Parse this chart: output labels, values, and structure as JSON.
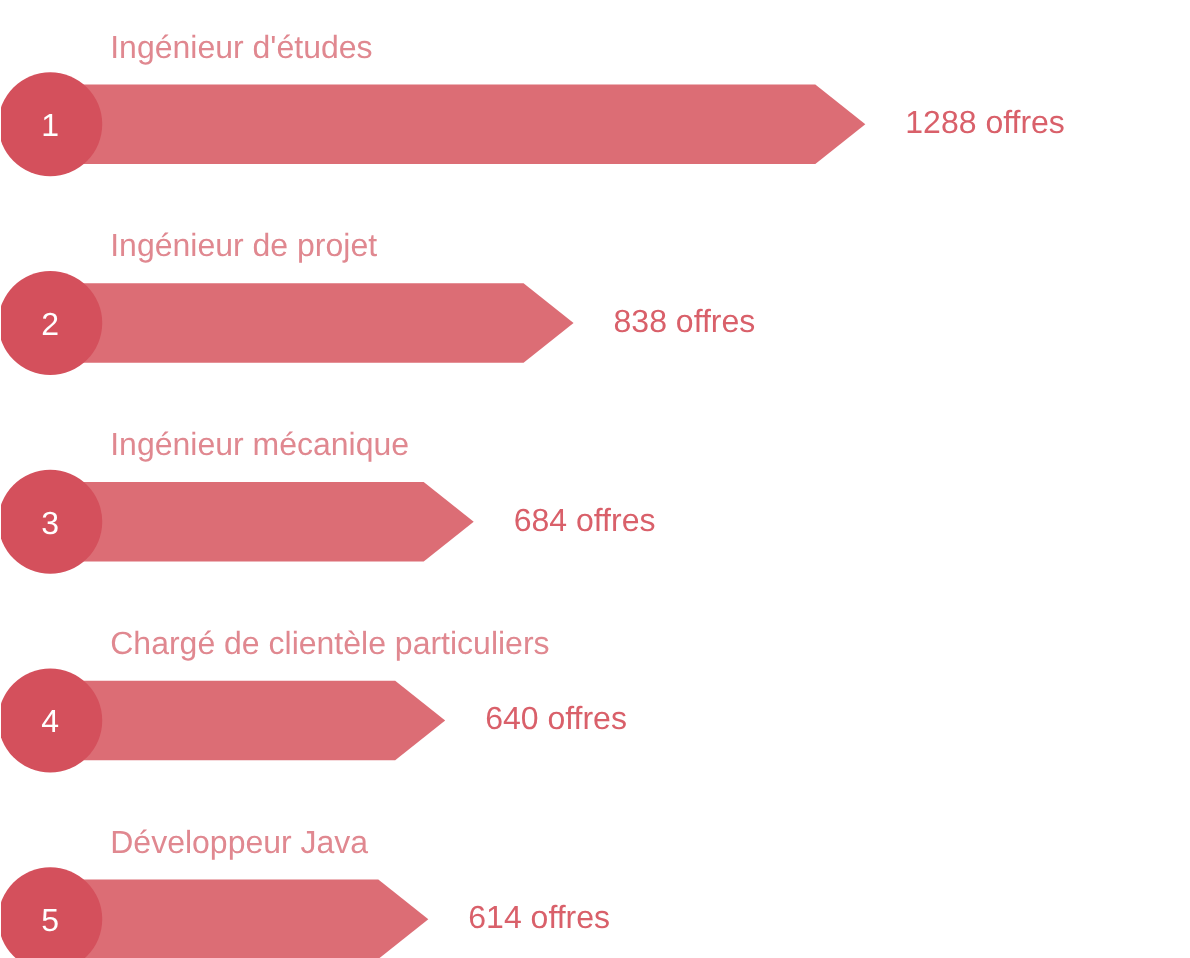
{
  "chart_data": {
    "type": "bar",
    "orientation": "horizontal",
    "categories": [
      "Ingénieur d'études",
      "Ingénieur de projet",
      "Ingénieur mécanique",
      "Chargé de clientèle particuliers",
      "Développeur Java"
    ],
    "values": [
      1288,
      838,
      684,
      640,
      614
    ],
    "color": "#dc6d75",
    "value_labels": [
      "1288 offres",
      "838 offres",
      "684 offres",
      "640 offres",
      "614 offres"
    ],
    "annotations": [
      "1",
      "2",
      "3",
      "4",
      "5"
    ],
    "grid": false,
    "tick_labels": false
  }
}
